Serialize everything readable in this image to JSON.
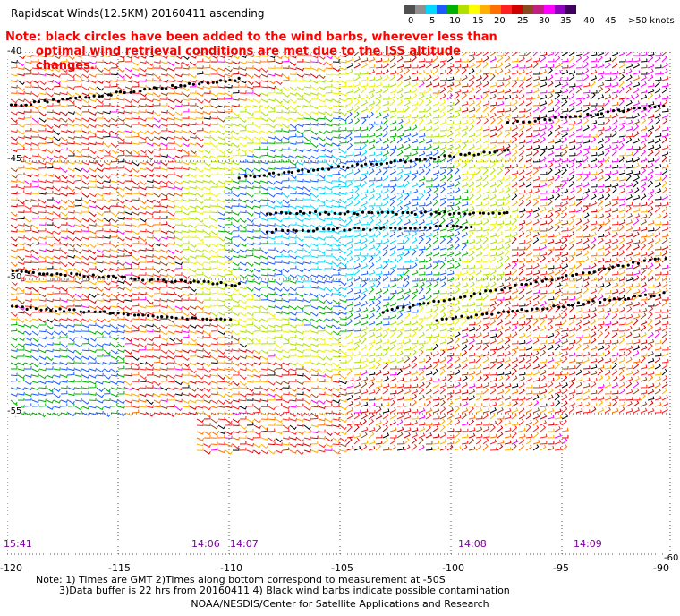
{
  "title": "Rapidscat Winds(12.5KM) 20160411 ascending",
  "note": {
    "line1": "Note: black circles have been added to the wind barbs, wherever less than",
    "line2": "optimal wind retrieval conditions are met due to the ISS altitude changes."
  },
  "legend": {
    "labels": [
      "0",
      "5",
      "10",
      "15",
      "20",
      "25",
      "30",
      "35",
      "40",
      "45",
      ">50 knots"
    ],
    "colors": [
      "#505050",
      "#909090",
      "#00d8ff",
      "#1c5cff",
      "#00b000",
      "#b0e000",
      "#ffff00",
      "#ffb000",
      "#ff7000",
      "#ff2020",
      "#d00000",
      "#8a4a20",
      "#c02080",
      "#ff00ff",
      "#9000c0",
      "#400060"
    ]
  },
  "axes": {
    "x_ticks": [
      "-120",
      "-115",
      "-110",
      "-105",
      "-100",
      "-95",
      "-90"
    ],
    "y_ticks": [
      "-40",
      "-45",
      "-50",
      "-55",
      "-60"
    ],
    "x_range": [
      -120,
      -90
    ],
    "y_range": [
      -60,
      -40
    ]
  },
  "times": [
    "15:41",
    "14:06",
    "14:07",
    "14:08",
    "14:09"
  ],
  "footer": {
    "line1": "Note: 1) Times are GMT 2)Times along bottom correspond to measurement at -50S",
    "line2": "3)Data buffer is 22 hrs from 20160411 4) Black wind barbs indicate possible contamination",
    "line3": "NOAA/NESDIS/Center for Satellite Applications and Research"
  }
}
